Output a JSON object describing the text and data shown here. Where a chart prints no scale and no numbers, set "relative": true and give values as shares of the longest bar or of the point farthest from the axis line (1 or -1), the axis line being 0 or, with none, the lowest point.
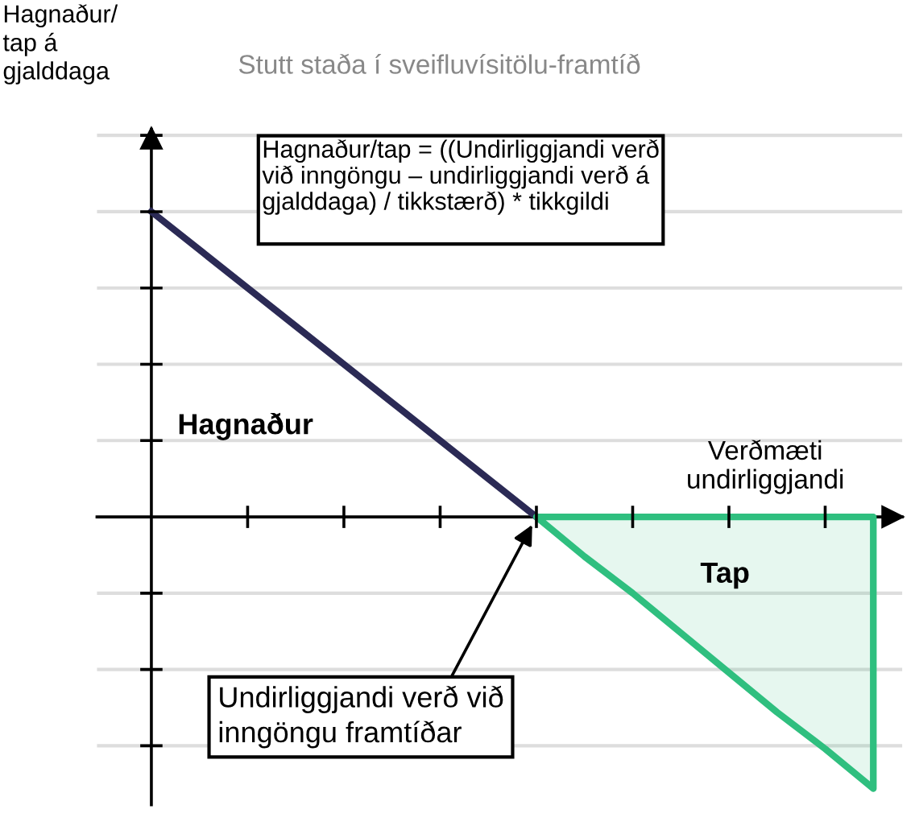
{
  "chart_data": {
    "type": "line",
    "relative": true,
    "title": "Stutt staða í sveifluvísitölu-framtíð",
    "xlabel": "Verðmæti\nundirliggjandi",
    "categories": [
      null,
      null,
      null,
      null,
      null,
      null,
      null,
      null,
      null,
      null,
      null,
      null,
      null,
      null,
      null,
      null
    ],
    "series": [
      {
        "color": "#2b2a55",
        "values": [
          1,
          0.875,
          0.75,
          0.625,
          0.5,
          0.375,
          0.25,
          0.125,
          0,
          null,
          null,
          null,
          null,
          null,
          null,
          null
        ]
      },
      {
        "type": "area",
        "color": "#2fbf7f",
        "values": [
          null,
          null,
          null,
          null,
          null,
          null,
          null,
          null,
          0,
          -0.13,
          -0.25,
          -0.38,
          -0.51,
          -0.64,
          -0.76,
          -0.89
        ]
      }
    ],
    "annotations": [
      "Hagnaður/\ntap á\ngjalddaga",
      "Hagnaður/tap = ((Undirliggjandi verð\nvið inngöngu – undirliggjandi verð á\ngjalddaga) / tikkstærð) * tikkgildi",
      "Hagnaður",
      "Tap",
      "Undirliggjandi verð við\ninngöngu framtíðar"
    ],
    "grid": "y",
    "legend": false,
    "marker": "none",
    "line_style": "solid"
  }
}
